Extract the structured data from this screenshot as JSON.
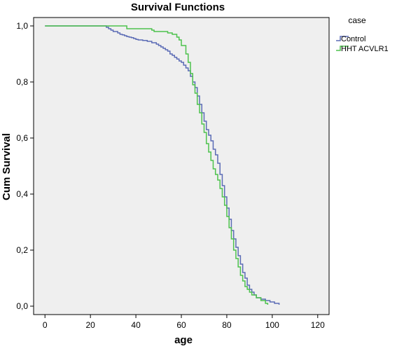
{
  "chart_data": {
    "type": "line",
    "step": true,
    "title": "Survival Functions",
    "xlabel": "age",
    "ylabel": "Cum Survival",
    "xlim": [
      -5,
      125
    ],
    "ylim": [
      -0.03,
      1.03
    ],
    "xticks": [
      0,
      20,
      40,
      60,
      80,
      100,
      120
    ],
    "xtick_labels": [
      "0",
      "20",
      "40",
      "60",
      "80",
      "100",
      "120"
    ],
    "yticks": [
      0.0,
      0.2,
      0.4,
      0.6,
      0.8,
      1.0
    ],
    "ytick_labels": [
      "0,0",
      "0,2",
      "0,4",
      "0,6",
      "0,8",
      "1,0"
    ],
    "grid": false,
    "plot_background": "#efefef",
    "legend": {
      "title": "case",
      "position": "outside-right"
    },
    "series": [
      {
        "name": "Control",
        "color": "#5b6bb5",
        "x": [
          0,
          26,
          27,
          28,
          29,
          30,
          32,
          33,
          34,
          35,
          36,
          37,
          38,
          39,
          40,
          41,
          42,
          43,
          45,
          47,
          49,
          50,
          51,
          52,
          53,
          54,
          55,
          56,
          57,
          58,
          59,
          60,
          61,
          62,
          63,
          64,
          65,
          66,
          67,
          68,
          69,
          70,
          71,
          72,
          73,
          74,
          75,
          76,
          77,
          78,
          79,
          80,
          81,
          82,
          83,
          84,
          85,
          86,
          87,
          88,
          89,
          90,
          91,
          92,
          93,
          95,
          97,
          99,
          101,
          103
        ],
        "y": [
          1.0,
          1.0,
          0.995,
          0.99,
          0.985,
          0.98,
          0.975,
          0.97,
          0.968,
          0.965,
          0.962,
          0.96,
          0.958,
          0.955,
          0.952,
          0.95,
          0.95,
          0.948,
          0.945,
          0.94,
          0.935,
          0.93,
          0.925,
          0.92,
          0.915,
          0.91,
          0.9,
          0.895,
          0.888,
          0.882,
          0.875,
          0.87,
          0.86,
          0.85,
          0.84,
          0.82,
          0.8,
          0.78,
          0.75,
          0.72,
          0.69,
          0.66,
          0.63,
          0.61,
          0.59,
          0.56,
          0.54,
          0.51,
          0.47,
          0.43,
          0.39,
          0.35,
          0.31,
          0.27,
          0.24,
          0.21,
          0.18,
          0.15,
          0.12,
          0.1,
          0.075,
          0.06,
          0.05,
          0.04,
          0.03,
          0.025,
          0.02,
          0.015,
          0.01,
          0.005
        ]
      },
      {
        "name": "HHT ACVLR1",
        "color": "#4dc24d",
        "x": [
          0,
          35,
          36,
          46,
          47,
          48,
          54,
          56,
          58,
          59,
          60,
          62,
          63,
          64,
          65,
          66,
          67,
          68,
          69,
          70,
          71,
          72,
          73,
          74,
          75,
          76,
          77,
          78,
          79,
          80,
          81,
          82,
          83,
          84,
          85,
          86,
          87,
          88,
          89,
          90,
          91,
          93,
          95,
          97,
          98
        ],
        "y": [
          1.0,
          1.0,
          0.99,
          0.99,
          0.985,
          0.98,
          0.975,
          0.97,
          0.96,
          0.95,
          0.93,
          0.9,
          0.87,
          0.83,
          0.79,
          0.76,
          0.72,
          0.69,
          0.65,
          0.62,
          0.58,
          0.55,
          0.52,
          0.49,
          0.47,
          0.45,
          0.42,
          0.39,
          0.36,
          0.32,
          0.28,
          0.24,
          0.2,
          0.17,
          0.14,
          0.11,
          0.09,
          0.07,
          0.06,
          0.05,
          0.04,
          0.03,
          0.02,
          0.01,
          0.005
        ]
      }
    ]
  }
}
